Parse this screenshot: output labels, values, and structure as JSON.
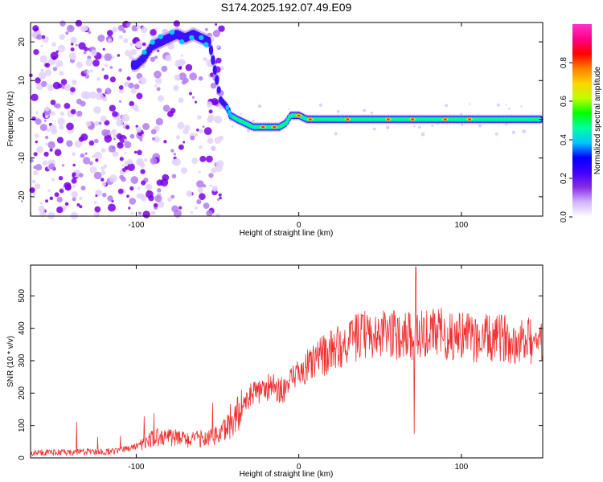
{
  "title": "S174.2025.192.07.49.E09",
  "chart_data": [
    {
      "type": "heatmap",
      "xlabel": "Height of straight line (km)",
      "ylabel": "Frequency (Hz)",
      "xlim": [
        -165,
        150
      ],
      "ylim": [
        -25,
        25
      ],
      "xticks": [
        -100,
        0,
        100
      ],
      "yticks": [
        -20,
        -10,
        0,
        10,
        20
      ],
      "grid": false,
      "colorbar": {
        "label": "Normalized spectral amplitude",
        "range": [
          0,
          1
        ],
        "ticks": [
          "0.0",
          "0.2",
          "0.4",
          "0.6",
          "0.8"
        ],
        "colormap": [
          "#ffffff",
          "#d2b4ff",
          "#8a2be2",
          "#4000ff",
          "#0000ff",
          "#00c8ff",
          "#00ff9f",
          "#00ff00",
          "#bfff00",
          "#ffd400",
          "#ff7f00",
          "#ff0000",
          "#ff0088",
          "#ff33cc"
        ]
      },
      "peak_frequency": [
        {
          "x": -100,
          "f": 14
        },
        {
          "x": -95,
          "f": 16
        },
        {
          "x": -90,
          "f": 19
        },
        {
          "x": -85,
          "f": 20
        },
        {
          "x": -80,
          "f": 21
        },
        {
          "x": -75,
          "f": 22
        },
        {
          "x": -70,
          "f": 21
        },
        {
          "x": -65,
          "f": 22
        },
        {
          "x": -60,
          "f": 21
        },
        {
          "x": -55,
          "f": 20
        },
        {
          "x": -48,
          "f": 5
        },
        {
          "x": -44,
          "f": 3
        },
        {
          "x": -42,
          "f": 1
        },
        {
          "x": -38,
          "f": 0
        },
        {
          "x": -33,
          "f": -1
        },
        {
          "x": -28,
          "f": -2
        },
        {
          "x": -24,
          "f": -2
        },
        {
          "x": -20,
          "f": -2
        },
        {
          "x": -16,
          "f": -2
        },
        {
          "x": -12,
          "f": -2
        },
        {
          "x": -8,
          "f": -1
        },
        {
          "x": -5,
          "f": 1
        },
        {
          "x": 0,
          "f": 1
        },
        {
          "x": 5,
          "f": 0
        },
        {
          "x": 10,
          "f": 0
        },
        {
          "x": 20,
          "f": 0
        },
        {
          "x": 30,
          "f": 0
        },
        {
          "x": 40,
          "f": 0
        },
        {
          "x": 50,
          "f": 0
        },
        {
          "x": 60,
          "f": 0
        },
        {
          "x": 70,
          "f": 0
        },
        {
          "x": 80,
          "f": 0
        },
        {
          "x": 90,
          "f": 0
        },
        {
          "x": 100,
          "f": 0
        },
        {
          "x": 110,
          "f": 0
        },
        {
          "x": 120,
          "f": 0
        },
        {
          "x": 130,
          "f": 0
        },
        {
          "x": 140,
          "f": 0
        },
        {
          "x": 150,
          "f": 0
        }
      ]
    },
    {
      "type": "line",
      "xlabel": "Height of straight line (km)",
      "ylabel": "SNR (10 * v/v)",
      "xlim": [
        -165,
        150
      ],
      "ylim": [
        0,
        595
      ],
      "xticks": [
        -100,
        0,
        100
      ],
      "yticks": [
        0,
        100,
        200,
        300,
        400,
        500
      ],
      "grid": false,
      "color": "#f03030",
      "x": [
        -165,
        -150,
        -140,
        -130,
        -120,
        -110,
        -100,
        -95,
        -90,
        -85,
        -80,
        -75,
        -70,
        -65,
        -60,
        -55,
        -50,
        -45,
        -40,
        -35,
        -30,
        -25,
        -20,
        -15,
        -10,
        -5,
        0,
        5,
        10,
        15,
        20,
        25,
        30,
        35,
        40,
        45,
        50,
        55,
        60,
        65,
        70,
        75,
        80,
        85,
        90,
        95,
        100,
        105,
        110,
        115,
        120,
        125,
        130,
        135,
        140,
        145,
        150
      ],
      "y": [
        15,
        18,
        15,
        20,
        18,
        22,
        35,
        45,
        60,
        70,
        65,
        60,
        58,
        55,
        60,
        65,
        70,
        90,
        120,
        150,
        190,
        205,
        220,
        215,
        210,
        230,
        260,
        280,
        300,
        315,
        330,
        345,
        355,
        370,
        380,
        380,
        378,
        385,
        380,
        385,
        375,
        385,
        380,
        385,
        375,
        370,
        385,
        370,
        365,
        370,
        360,
        375,
        365,
        360,
        365,
        355,
        360
      ],
      "annotations": [
        {
          "x": 72,
          "y": 590,
          "note": "max spike"
        },
        {
          "x": 71,
          "y": 75,
          "note": "min dip"
        }
      ]
    }
  ]
}
